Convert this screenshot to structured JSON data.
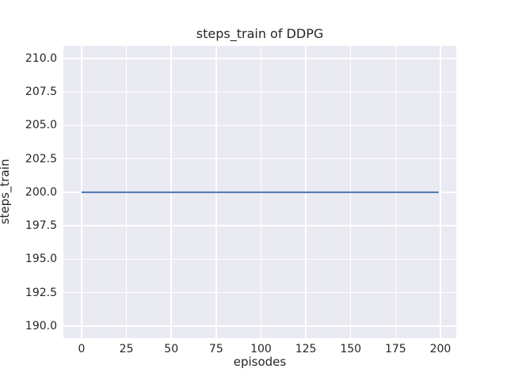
{
  "chart_data": {
    "type": "line",
    "title": "steps_train of DDPG",
    "xlabel": "episodes",
    "ylabel": "steps_train",
    "x_ticks": [
      0,
      25,
      50,
      75,
      100,
      125,
      150,
      175,
      200
    ],
    "x_tick_labels": [
      "0",
      "25",
      "50",
      "75",
      "100",
      "125",
      "150",
      "175",
      "200"
    ],
    "y_ticks": [
      190.0,
      192.5,
      195.0,
      197.5,
      200.0,
      202.5,
      205.0,
      207.5,
      210.0
    ],
    "y_tick_labels": [
      "190.0",
      "192.5",
      "195.0",
      "197.5",
      "200.0",
      "202.5",
      "205.0",
      "207.5",
      "210.0"
    ],
    "xlim": [
      -10.15,
      208.85
    ],
    "ylim": [
      189.1,
      210.95
    ],
    "grid": true,
    "legend": false,
    "series": [
      {
        "name": "steps_train",
        "description": "constant value 200 for every episode from 0 to 199",
        "x": [
          0,
          199
        ],
        "y": [
          200,
          200
        ],
        "constant_value": 200,
        "color": "#4C72B0",
        "linewidth": 2
      }
    ]
  },
  "colors": {
    "figure_bg": "#FFFFFF",
    "axes_bg": "#EAEAF2",
    "grid": "#FFFFFF",
    "text": "#262626",
    "line": "#4C72B0"
  }
}
